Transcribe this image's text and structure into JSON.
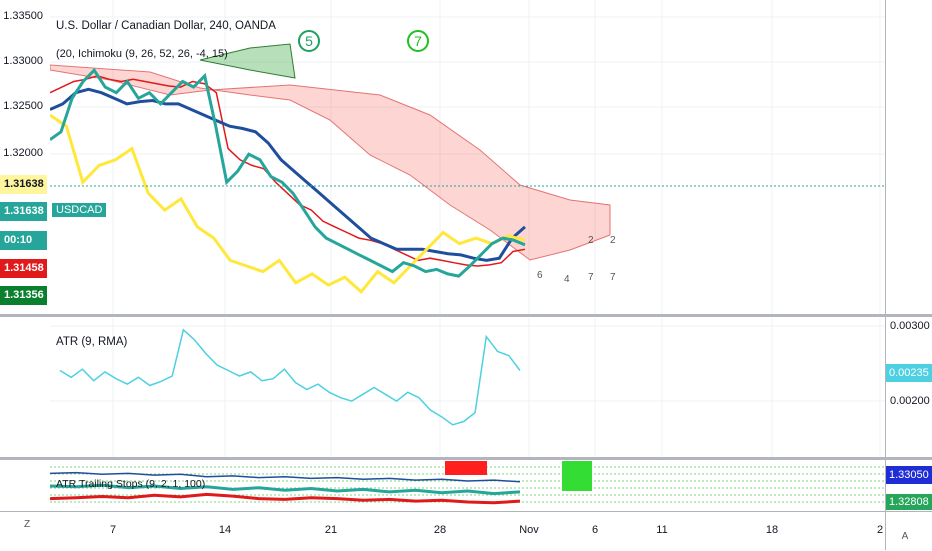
{
  "chart_data": [
    {
      "type": "line",
      "title": "U.S. Dollar / Canadian Dollar, 240, OANDA",
      "symbol": "USDCAD",
      "indicator_legend": "(20, Ichimoku (9, 26, 52, 26, -4, 15)",
      "y_ticks": [
        "1.33500",
        "1.33000",
        "1.32500",
        "1.32000"
      ],
      "ylim": [
        1.312,
        1.3365
      ],
      "price_labels": {
        "last": "1.31638",
        "symbol_price": "1.31638",
        "countdown": "00:10",
        "red_line": "1.31458",
        "green_line": "1.31356",
        "left_top": "1.31638"
      },
      "x_ticks": [
        "7",
        "14",
        "21",
        "28",
        "Nov",
        "6",
        "11",
        "18",
        "2"
      ],
      "series": [
        {
          "name": "price",
          "color": "#26a69a",
          "values": [
            1.3258,
            1.3265,
            1.3295,
            1.331,
            1.332,
            1.3305,
            1.33,
            1.331,
            1.3295,
            1.33,
            1.329,
            1.33,
            1.331,
            1.3305,
            1.3315,
            1.327,
            1.322,
            1.323,
            1.3245,
            1.324,
            1.3225,
            1.322,
            1.321,
            1.3195,
            1.318,
            1.317,
            1.3165,
            1.316,
            1.3155,
            1.315,
            1.3145,
            1.314,
            1.3148,
            1.3145,
            1.314,
            1.3142,
            1.3138,
            1.3136,
            1.3145,
            1.3155,
            1.3165,
            1.317,
            1.3168,
            1.3164
          ]
        },
        {
          "color": "#e0191b",
          "values": [
            1.33,
            1.3305,
            1.331,
            1.3312,
            1.3315,
            1.3312,
            1.331,
            1.3312,
            1.331,
            1.3308,
            1.3306,
            1.3305,
            1.331,
            1.3308,
            1.33,
            1.325,
            1.324,
            1.3235,
            1.3232,
            1.322,
            1.321,
            1.32,
            1.3195,
            1.3185,
            1.318,
            1.3175,
            1.317,
            1.3168,
            1.3165,
            1.316,
            1.3155,
            1.315,
            1.3152,
            1.315,
            1.3148,
            1.3146,
            1.3145,
            1.3146,
            1.3148,
            1.3158,
            1.316
          ]
        },
        {
          "color": "#1f4e9c",
          "values": [
            1.3285,
            1.329,
            1.33,
            1.3303,
            1.33,
            1.3295,
            1.329,
            1.3292,
            1.3293,
            1.329,
            1.329,
            1.3285,
            1.328,
            1.3275,
            1.327,
            1.3268,
            1.3265,
            1.3255,
            1.324,
            1.323,
            1.322,
            1.321,
            1.32,
            1.319,
            1.318,
            1.317,
            1.3165,
            1.316,
            1.316,
            1.316,
            1.3158,
            1.3156,
            1.3155,
            1.3152,
            1.315,
            1.3152,
            1.317,
            1.318
          ]
        },
        {
          "color": "#ffe83a",
          "values": [
            1.328,
            1.327,
            1.322,
            1.3235,
            1.324,
            1.325,
            1.321,
            1.3195,
            1.3205,
            1.318,
            1.317,
            1.315,
            1.3145,
            1.314,
            1.315,
            1.313,
            1.3138,
            1.3128,
            1.3135,
            1.3122,
            1.314,
            1.313,
            1.3145,
            1.316,
            1.3175,
            1.3165,
            1.317,
            1.3165,
            1.3172,
            1.3168
          ]
        }
      ]
    },
    {
      "type": "line",
      "title": "ATR (9, RMA)",
      "y_ticks": [
        "0.00300",
        "0.00200"
      ],
      "current": "0.00235",
      "ylim": [
        0.0012,
        0.0031
      ],
      "series": [
        {
          "color": "#4dd0e1",
          "values": [
            0.0024,
            0.0023,
            0.00242,
            0.00225,
            0.00238,
            0.00228,
            0.0022,
            0.0023,
            0.00218,
            0.00224,
            0.00232,
            0.003,
            0.00285,
            0.00265,
            0.00248,
            0.0024,
            0.00232,
            0.00238,
            0.00225,
            0.00228,
            0.00242,
            0.00222,
            0.00212,
            0.0022,
            0.00208,
            0.002,
            0.00195,
            0.00205,
            0.00215,
            0.00205,
            0.00195,
            0.00208,
            0.002,
            0.00182,
            0.00172,
            0.0016,
            0.00165,
            0.00178,
            0.0029,
            0.00268,
            0.00262,
            0.0024
          ]
        }
      ]
    },
    {
      "type": "line",
      "title": "ATR Trailing Stops (9, 2, 1, 100)",
      "current_blue": "1.33050",
      "current_green": "1.32808",
      "series": [
        {
          "color": "#1f4e9c",
          "values": [
            0.8,
            0.82,
            0.78,
            0.8,
            0.76,
            0.78,
            0.72,
            0.74,
            0.7,
            0.72,
            0.68,
            0.7,
            0.66,
            0.68,
            0.64,
            0.66,
            0.62,
            0.64,
            0.6
          ]
        },
        {
          "color": "#e0191b",
          "values": [
            0.2,
            0.22,
            0.25,
            0.22,
            0.28,
            0.24,
            0.3,
            0.26,
            0.2,
            0.18,
            0.22,
            0.2,
            0.16,
            0.18,
            0.14,
            0.16,
            0.12,
            0.1,
            0.14
          ]
        },
        {
          "color": "#26a69a",
          "values": [
            0.5,
            0.48,
            0.52,
            0.46,
            0.5,
            0.44,
            0.48,
            0.42,
            0.46,
            0.4,
            0.44,
            0.38,
            0.42,
            0.36,
            0.4,
            0.34,
            0.38,
            0.32,
            0.36
          ]
        }
      ]
    }
  ],
  "toolbar": {
    "zoom_label": "Z",
    "auto_label": "A"
  },
  "markers": {
    "circle_5": "5",
    "circle_7": "7",
    "event_counts": [
      "6",
      "4",
      "7",
      "7",
      "2",
      "2"
    ]
  }
}
